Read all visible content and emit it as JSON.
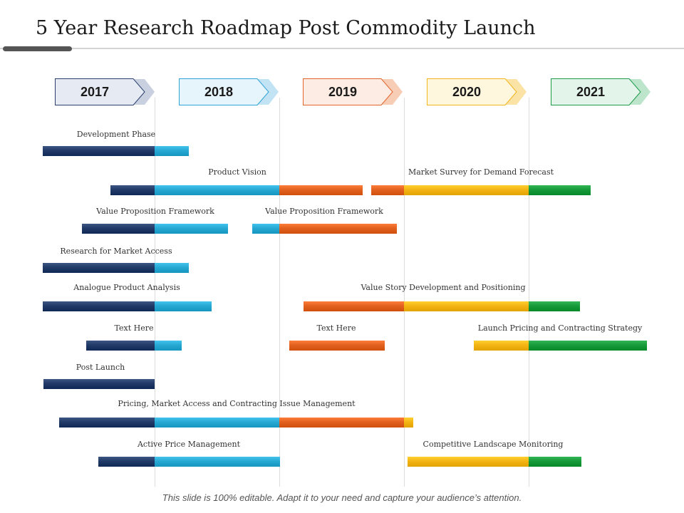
{
  "title": "5 Year Research Roadmap Post Commodity Launch",
  "footer": "This slide is 100% editable. Adapt it to your need and capture your audience’s attention.",
  "years": [
    {
      "label": "2017",
      "fill": "#e6eaf2",
      "border": "#2a3f6b",
      "shadow": "#c9d0e0"
    },
    {
      "label": "2018",
      "fill": "#e6f4fb",
      "border": "#2fa3d6",
      "shadow": "#c2e3f3"
    },
    {
      "label": "2019",
      "fill": "#fdece3",
      "border": "#e3652c",
      "shadow": "#f7cdb6"
    },
    {
      "label": "2020",
      "fill": "#fff6de",
      "border": "#f2b51c",
      "shadow": "#fbe3a6"
    },
    {
      "label": "2021",
      "fill": "#e3f5ea",
      "border": "#1f9a49",
      "shadow": "#bde5cb"
    }
  ],
  "colors": {
    "navy": "#213a68",
    "cyan": "#27a8d3",
    "orange": "#e2611f",
    "yellow": "#f3b414",
    "green": "#169a3a"
  },
  "tasks": [
    {
      "label": "Development Phase"
    },
    {
      "label": "Product  Vision"
    },
    {
      "label": "Market Survey  for Demand Forecast"
    },
    {
      "label": "Value Proposition Framework"
    },
    {
      "label": "Value Proposition Framework"
    },
    {
      "label": "Research for Market Access"
    },
    {
      "label": "Analogue Product Analysis"
    },
    {
      "label": "Value Story Development  and Positioning"
    },
    {
      "label": "Text Here"
    },
    {
      "label": "Text Here"
    },
    {
      "label": "Launch Pricing  and Contracting Strategy"
    },
    {
      "label": "Post Launch"
    },
    {
      "label": "Pricing,  Market Access and Contracting Issue Management"
    },
    {
      "label": "Active Price Management"
    },
    {
      "label": "Competitive Landscape Monitoring"
    }
  ]
}
